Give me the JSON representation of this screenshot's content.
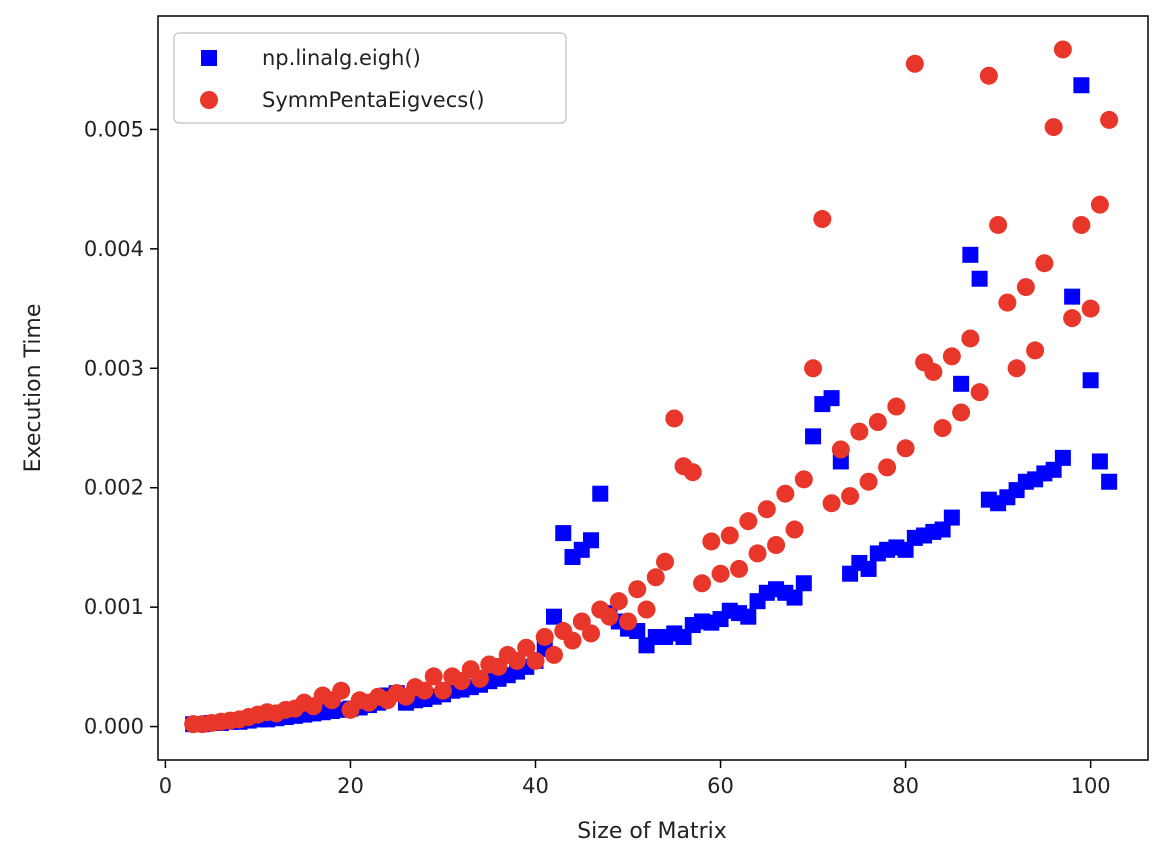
{
  "chart_data": {
    "type": "scatter",
    "title": "",
    "xlabel": "Size of Matrix",
    "ylabel": "Execution Time",
    "xlim": [
      -0.8,
      106.2
    ],
    "ylim": [
      -0.00028,
      0.00595
    ],
    "xticks": [
      0,
      20,
      40,
      60,
      80,
      100
    ],
    "yticks": [
      0.0,
      0.001,
      0.002,
      0.003,
      0.004,
      0.005
    ],
    "xtick_labels": [
      "0",
      "20",
      "40",
      "60",
      "80",
      "100"
    ],
    "ytick_labels": [
      "0.000",
      "0.001",
      "0.002",
      "0.003",
      "0.004",
      "0.005"
    ],
    "grid": false,
    "legend_position": "top-left",
    "series": [
      {
        "name": "np.linalg.eigh()",
        "color": "#0000ff",
        "marker": "square",
        "x": [
          3,
          4,
          5,
          6,
          7,
          8,
          9,
          10,
          11,
          12,
          13,
          14,
          15,
          16,
          17,
          18,
          19,
          20,
          21,
          22,
          23,
          24,
          25,
          26,
          27,
          28,
          29,
          30,
          31,
          32,
          33,
          34,
          35,
          36,
          37,
          38,
          39,
          40,
          41,
          42,
          43,
          44,
          45,
          46,
          47,
          48,
          49,
          50,
          51,
          52,
          53,
          54,
          55,
          56,
          57,
          58,
          59,
          60,
          61,
          62,
          63,
          64,
          65,
          66,
          67,
          68,
          69,
          70,
          71,
          72,
          73,
          74,
          75,
          76,
          77,
          78,
          79,
          80,
          81,
          82,
          83,
          84,
          85,
          86,
          87,
          88,
          89,
          90,
          91,
          92,
          93,
          94,
          95,
          96,
          97,
          98,
          99,
          100,
          101,
          102
        ],
        "y": [
          2e-05,
          2e-05,
          3e-05,
          3e-05,
          4e-05,
          4e-05,
          5e-05,
          6e-05,
          6e-05,
          7e-05,
          8e-05,
          9e-05,
          0.0001,
          0.00011,
          0.00012,
          0.00013,
          0.00014,
          0.00015,
          0.00016,
          0.00018,
          0.0002,
          0.00026,
          0.00028,
          0.0002,
          0.00022,
          0.00023,
          0.00025,
          0.00027,
          0.0003,
          0.00031,
          0.00033,
          0.00035,
          0.00038,
          0.0004,
          0.00043,
          0.00046,
          0.0005,
          0.00055,
          0.00065,
          0.00092,
          0.00162,
          0.00142,
          0.00148,
          0.00156,
          0.00195,
          0.00095,
          0.00088,
          0.00082,
          0.0008,
          0.00068,
          0.00075,
          0.00075,
          0.00078,
          0.00075,
          0.00085,
          0.00088,
          0.00087,
          0.0009,
          0.00097,
          0.00095,
          0.00092,
          0.00105,
          0.00112,
          0.00115,
          0.00112,
          0.00108,
          0.0012,
          0.00243,
          0.0027,
          0.00275,
          0.00222,
          0.00128,
          0.00137,
          0.00132,
          0.00145,
          0.00148,
          0.0015,
          0.00148,
          0.00158,
          0.0016,
          0.00163,
          0.00165,
          0.00175,
          0.00287,
          0.00395,
          0.00375,
          0.0019,
          0.00187,
          0.00192,
          0.00198,
          0.00205,
          0.00207,
          0.00212,
          0.00215,
          0.00225,
          0.0036,
          0.00537,
          0.0029,
          0.00222,
          0.00205
        ]
      },
      {
        "name": "SymmPentaEigvecs()",
        "color": "#e8362a",
        "marker": "circle",
        "x": [
          3,
          4,
          5,
          6,
          7,
          8,
          9,
          10,
          11,
          12,
          13,
          14,
          15,
          16,
          17,
          18,
          19,
          20,
          21,
          22,
          23,
          24,
          25,
          26,
          27,
          28,
          29,
          30,
          31,
          32,
          33,
          34,
          35,
          36,
          37,
          38,
          39,
          40,
          41,
          42,
          43,
          44,
          45,
          46,
          47,
          48,
          49,
          50,
          51,
          52,
          53,
          54,
          55,
          56,
          57,
          58,
          59,
          60,
          61,
          62,
          63,
          64,
          65,
          66,
          67,
          68,
          69,
          70,
          71,
          72,
          73,
          74,
          75,
          76,
          77,
          78,
          79,
          80,
          81,
          82,
          83,
          84,
          85,
          86,
          87,
          88,
          89,
          90,
          91,
          92,
          93,
          94,
          95,
          96,
          97,
          98,
          99,
          100,
          101,
          102
        ],
        "y": [
          2e-05,
          2e-05,
          3e-05,
          4e-05,
          5e-05,
          6e-05,
          8e-05,
          0.0001,
          0.00012,
          0.00011,
          0.00014,
          0.00015,
          0.0002,
          0.00017,
          0.00026,
          0.00022,
          0.0003,
          0.00014,
          0.00022,
          0.0002,
          0.00025,
          0.00022,
          0.00028,
          0.00025,
          0.00033,
          0.0003,
          0.00042,
          0.0003,
          0.00042,
          0.00038,
          0.00048,
          0.0004,
          0.00052,
          0.0005,
          0.0006,
          0.00055,
          0.00066,
          0.00055,
          0.00075,
          0.0006,
          0.0008,
          0.00072,
          0.00088,
          0.00078,
          0.00098,
          0.00092,
          0.00105,
          0.00088,
          0.00115,
          0.00098,
          0.00125,
          0.00138,
          0.00258,
          0.00218,
          0.00213,
          0.0012,
          0.00155,
          0.00128,
          0.0016,
          0.00132,
          0.00172,
          0.00145,
          0.00182,
          0.00152,
          0.00195,
          0.00165,
          0.00207,
          0.003,
          0.00425,
          0.00187,
          0.00232,
          0.00193,
          0.00247,
          0.00205,
          0.00255,
          0.00217,
          0.00268,
          0.00233,
          0.00555,
          0.00305,
          0.00297,
          0.0025,
          0.0031,
          0.00263,
          0.00325,
          0.0028,
          0.00545,
          0.0042,
          0.00355,
          0.003,
          0.00368,
          0.00315,
          0.00388,
          0.00502,
          0.00567,
          0.00342,
          0.0042,
          0.0035,
          0.00437,
          0.00508
        ]
      }
    ]
  }
}
